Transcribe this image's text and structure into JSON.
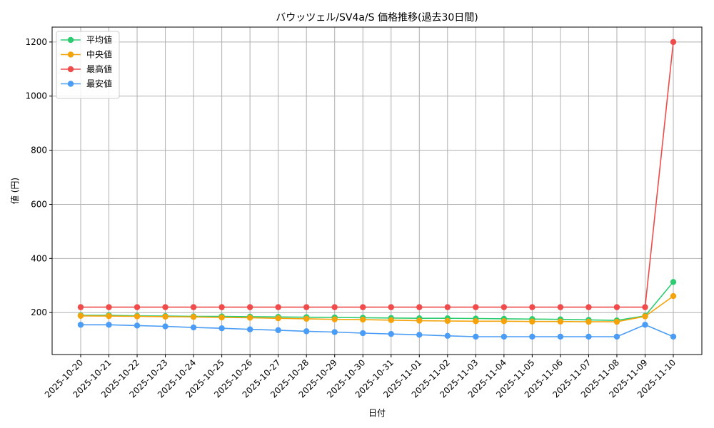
{
  "chart_data": {
    "type": "line",
    "title": "バウッツェル/SV4a/S 価格推移(過去30日間)",
    "xlabel": "日付",
    "ylabel": "値 (円)",
    "ylim": [
      45,
      1255
    ],
    "yticks": [
      200,
      400,
      600,
      800,
      1000,
      1200
    ],
    "grid": true,
    "legend_position": "top-left",
    "categories": [
      "2025-10-20",
      "2025-10-21",
      "2025-10-22",
      "2025-10-23",
      "2025-10-24",
      "2025-10-25",
      "2025-10-26",
      "2025-10-27",
      "2025-10-28",
      "2025-10-29",
      "2025-10-30",
      "2025-10-31",
      "2025-11-01",
      "2025-11-02",
      "2025-11-03",
      "2025-11-04",
      "2025-11-05",
      "2025-11-06",
      "2025-11-07",
      "2025-11-08",
      "2025-11-09",
      "2025-11-10"
    ],
    "series": [
      {
        "name": "平均値",
        "color": "#2ecc71",
        "values": [
          190,
          190,
          188,
          187,
          186,
          186,
          185,
          184,
          183,
          182,
          181,
          180,
          179,
          179,
          178,
          177,
          176,
          175,
          173,
          171,
          188,
          313
        ]
      },
      {
        "name": "中央値",
        "color": "#f5a30a",
        "values": [
          188,
          187,
          186,
          185,
          184,
          182,
          181,
          179,
          177,
          175,
          174,
          172,
          170,
          169,
          168,
          168,
          167,
          167,
          166,
          166,
          186,
          261
        ]
      },
      {
        "name": "最高値",
        "color": "#ef4b4b",
        "values": [
          220,
          220,
          220,
          220,
          220,
          220,
          220,
          220,
          220,
          220,
          220,
          220,
          220,
          220,
          220,
          220,
          220,
          220,
          220,
          220,
          220,
          1200
        ]
      },
      {
        "name": "最安値",
        "color": "#4a9cf5",
        "values": [
          155,
          155,
          152,
          149,
          145,
          142,
          138,
          135,
          131,
          128,
          124,
          121,
          118,
          114,
          111,
          111,
          111,
          111,
          111,
          111,
          155,
          111
        ]
      }
    ]
  }
}
